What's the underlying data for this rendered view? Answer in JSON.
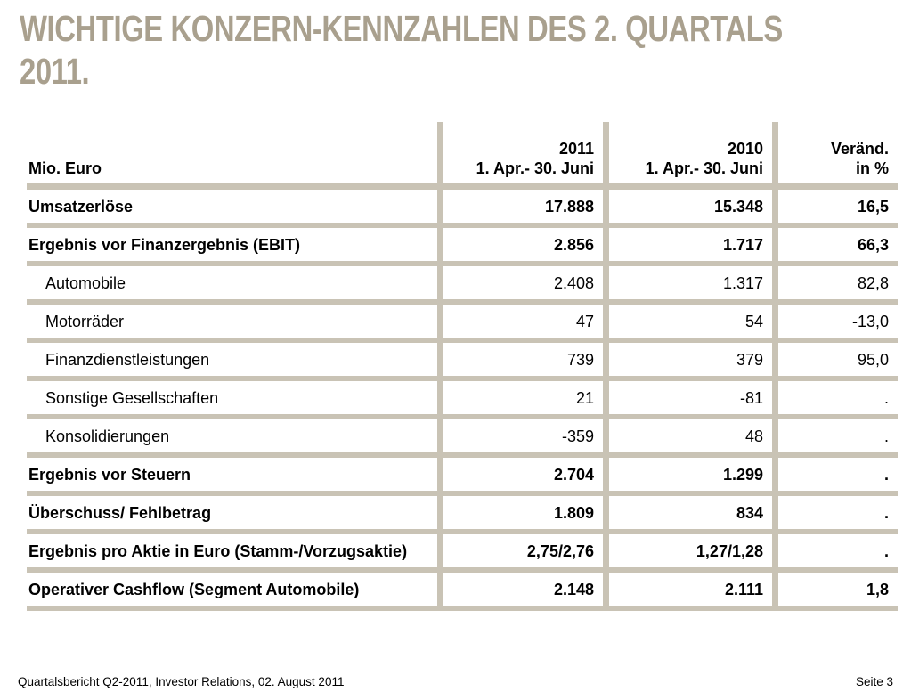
{
  "title": {
    "line1": "WICHTIGE KONZERN-KENNZAHLEN DES 2. QUARTALS",
    "line2": "2011."
  },
  "table": {
    "header": {
      "col1": "Mio. Euro",
      "col2_line1": "2011",
      "col2_line2": "1. Apr.- 30. Juni",
      "col3_line1": "2010",
      "col3_line2": "1. Apr.- 30. Juni",
      "col4_line1": "Veränd.",
      "col4_line2": "in %"
    },
    "rows": [
      {
        "label": "Umsatzerlöse",
        "v2011": "17.888",
        "v2010": "15.348",
        "change": "16,5",
        "bold": true,
        "indent": false
      },
      {
        "label": "Ergebnis vor Finanzergebnis (EBIT)",
        "v2011": "2.856",
        "v2010": "1.717",
        "change": "66,3",
        "bold": true,
        "indent": false
      },
      {
        "label": "Automobile",
        "v2011": "2.408",
        "v2010": "1.317",
        "change": "82,8",
        "bold": false,
        "indent": true
      },
      {
        "label": "Motorräder",
        "v2011": "47",
        "v2010": "54",
        "change": "-13,0",
        "bold": false,
        "indent": true
      },
      {
        "label": "Finanzdienstleistungen",
        "v2011": "739",
        "v2010": "379",
        "change": "95,0",
        "bold": false,
        "indent": true
      },
      {
        "label": "Sonstige Gesellschaften",
        "v2011": "21",
        "v2010": "-81",
        "change": ".",
        "bold": false,
        "indent": true
      },
      {
        "label": "Konsolidierungen",
        "v2011": "-359",
        "v2010": "48",
        "change": ".",
        "bold": false,
        "indent": true
      },
      {
        "label": "Ergebnis vor Steuern",
        "v2011": "2.704",
        "v2010": "1.299",
        "change": ".",
        "bold": true,
        "indent": false
      },
      {
        "label": "Überschuss/ Fehlbetrag",
        "v2011": "1.809",
        "v2010": "834",
        "change": ".",
        "bold": true,
        "indent": false
      },
      {
        "label": "Ergebnis pro Aktie in Euro (Stamm-/Vorzugsaktie)",
        "v2011": "2,75/2,76",
        "v2010": "1,27/1,28",
        "change": ".",
        "bold": true,
        "indent": false
      },
      {
        "label": "Operativer Cashflow (Segment Automobile)",
        "v2011": "2.148",
        "v2010": "2.111",
        "change": "1,8",
        "bold": true,
        "indent": false
      }
    ]
  },
  "footer": {
    "left": "Quartalsbericht Q2-2011, Investor Relations, 02. August 2011",
    "right": "Seite 3"
  },
  "colors": {
    "title": "#A9A08E",
    "separator": "#C9C3B5",
    "text": "#000000"
  }
}
